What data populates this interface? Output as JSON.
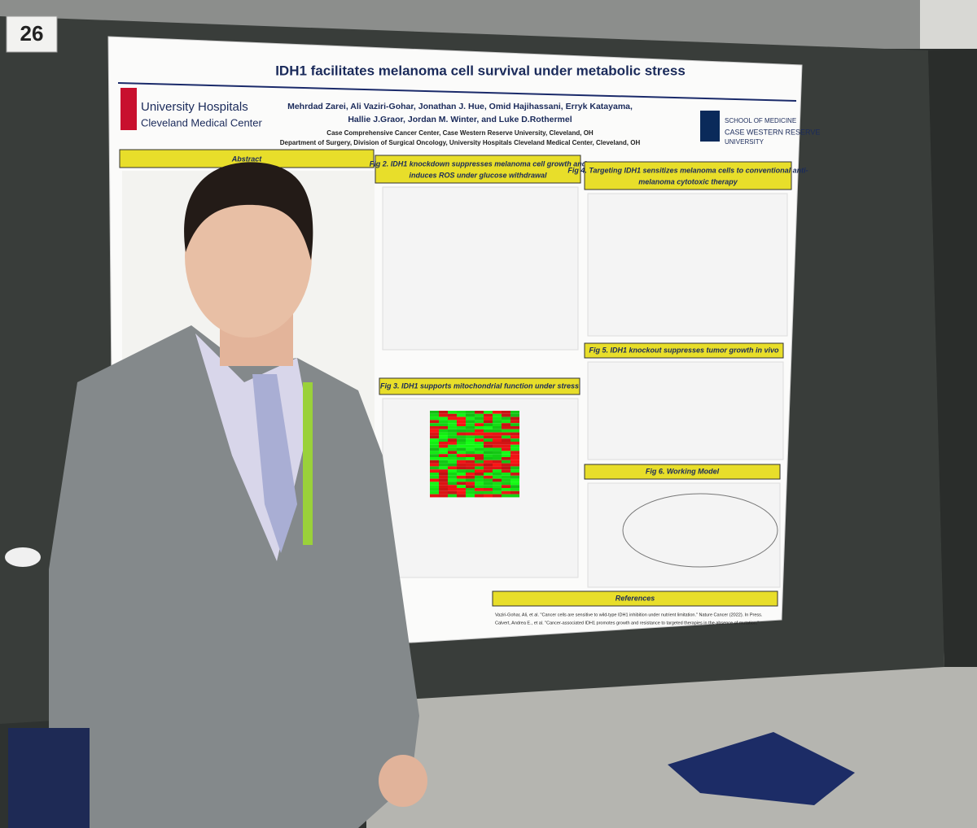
{
  "sign": {
    "number": "26"
  },
  "poster": {
    "title": "IDH1 facilitates melanoma cell survival under metabolic stress",
    "authors": [
      "Mehrdad Zarei, Ali Vaziri-Gohar, Jonathan J. Hue, Omid Hajihassani, Erryk Katayama,",
      "Hallie J.Graor, Jordan M. Winter, and Luke D.Rothermel"
    ],
    "affiliations": [
      "Case Comprehensive Cancer Center, Case Western Reserve University, Cleveland, OH",
      "Department of Surgery, Division of Surgical Oncology, University Hospitals Cleveland Medical Center, Cleveland, OH"
    ],
    "logo_left": [
      "University Hospitals",
      "Cleveland Medical Center"
    ],
    "logo_right": [
      "SCHOOL OF MEDICINE",
      "CASE WESTERN RESERVE",
      "UNIVERSITY"
    ],
    "sections": {
      "abstract": [
        "Abstract"
      ],
      "fig2": [
        "Fig 2. IDH1 knockdown suppresses melanoma cell growth and",
        "induces ROS under glucose withdrawal"
      ],
      "fig4": [
        "Fig 4. Targeting IDH1 sensitizes melanoma cells to conventional anti-",
        "melanoma cytotoxic therapy"
      ],
      "fig5": [
        "Fig 5. IDH1 knockout suppresses tumor growth in vivo"
      ],
      "fig3": [
        "Fig 3. IDH1 supports mitochondrial function under stress"
      ],
      "fig6": [
        "Fig 6. Working Model"
      ],
      "references": [
        "References"
      ]
    },
    "reference_lines": [
      "Vaziri-Gohar, Ali, et al. \"Cancer cells are sensitive to wild-type IDH1 inhibition under nutrient limitation.\" Nature Cancer (2022). In Press.",
      "Calvert, Andrea E., et al. \"Cancer-associated IDH1 promotes growth and resistance to targeted therapies in the absence of mutation.\""
    ]
  }
}
